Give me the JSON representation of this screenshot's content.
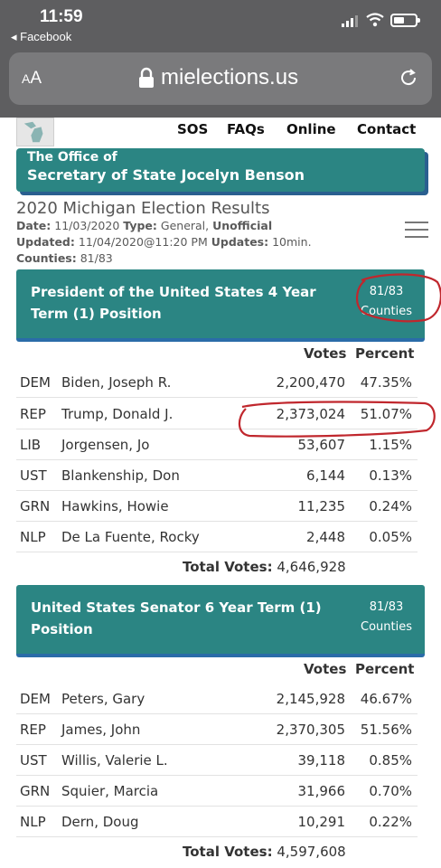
{
  "status": {
    "time": "11:59",
    "back_app": "◂ Facebook"
  },
  "browser": {
    "aa_small": "A",
    "aa_big": "A",
    "url": "mielections.us"
  },
  "nav": {
    "items": [
      "SOS",
      "FAQs",
      "Online",
      "Contact"
    ]
  },
  "banner": {
    "line1": "The Office of",
    "line2": "Secretary of State Jocelyn Benson"
  },
  "results": {
    "title": "2020 Michigan Election Results",
    "date_label": "Date:",
    "date_value": "11/03/2020",
    "type_label": "Type:",
    "type_value": "General,",
    "unofficial": "Unofficial",
    "updated_label": "Updated:",
    "updated_value": "11/04/2020@11:20 PM",
    "updates_label": "Updates:",
    "updates_value": "10min.",
    "counties_label": "Counties:",
    "counties_value": "81/83"
  },
  "races": [
    {
      "title": "President of the United States 4 Year Term (1) Position",
      "count": "81/83",
      "count_label": "Counties",
      "votes_header": "Votes",
      "percent_header": "Percent",
      "rows": [
        {
          "party": "DEM",
          "name": "Biden, Joseph R.",
          "votes": "2,200,470",
          "percent": "47.35%"
        },
        {
          "party": "REP",
          "name": "Trump, Donald J.",
          "votes": "2,373,024",
          "percent": "51.07%"
        },
        {
          "party": "LIB",
          "name": "Jorgensen, Jo",
          "votes": "53,607",
          "percent": "1.15%"
        },
        {
          "party": "UST",
          "name": "Blankenship, Don",
          "votes": "6,144",
          "percent": "0.13%"
        },
        {
          "party": "GRN",
          "name": "Hawkins, Howie",
          "votes": "11,235",
          "percent": "0.24%"
        },
        {
          "party": "NLP",
          "name": "De La Fuente, Rocky",
          "votes": "2,448",
          "percent": "0.05%"
        }
      ],
      "total_label": "Total Votes:",
      "total_value": "4,646,928"
    },
    {
      "title": "United States Senator 6 Year Term (1) Position",
      "count": "81/83",
      "count_label": "Counties",
      "votes_header": "Votes",
      "percent_header": "Percent",
      "rows": [
        {
          "party": "DEM",
          "name": "Peters, Gary",
          "votes": "2,145,928",
          "percent": "46.67%"
        },
        {
          "party": "REP",
          "name": "James, John",
          "votes": "2,370,305",
          "percent": "51.56%"
        },
        {
          "party": "UST",
          "name": "Willis, Valerie L.",
          "votes": "39,118",
          "percent": "0.85%"
        },
        {
          "party": "GRN",
          "name": "Squier, Marcia",
          "votes": "31,966",
          "percent": "0.70%"
        },
        {
          "party": "NLP",
          "name": "Dern, Doug",
          "votes": "10,291",
          "percent": "0.22%"
        }
      ],
      "total_label": "Total Votes:",
      "total_value": "4,597,608"
    }
  ],
  "colors": {
    "teal": "#2b8583",
    "annotation_red": "#c0272d",
    "chrome": "#5e5e60"
  }
}
